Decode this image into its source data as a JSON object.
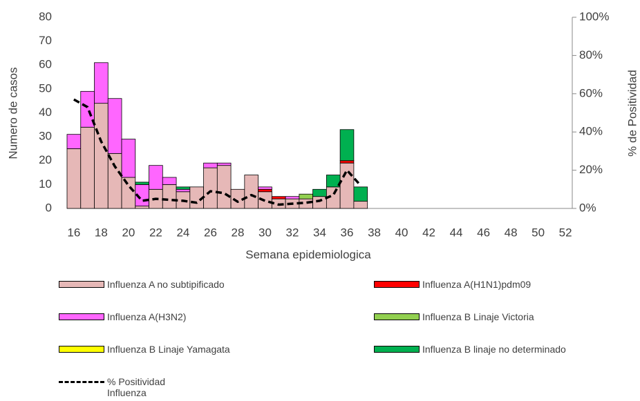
{
  "chart_data": {
    "type": "bar",
    "stacked": true,
    "x_label": "Semana epidemiologica",
    "y_label": "Numero de casos",
    "y2_label": "% de Positividad",
    "categories": [
      16,
      null,
      18,
      null,
      20,
      null,
      22,
      null,
      24,
      null,
      26,
      null,
      28,
      null,
      30,
      null,
      32,
      null,
      34,
      null,
      36,
      null,
      38,
      null,
      40,
      null,
      42,
      null,
      44,
      null,
      46,
      null,
      48,
      null,
      50,
      null,
      52
    ],
    "ylim": [
      0,
      80
    ],
    "yticks": [
      0,
      10,
      20,
      30,
      40,
      50,
      60,
      70,
      80
    ],
    "y2lim": [
      0,
      100
    ],
    "y2ticks": [
      {
        "value": 0,
        "label": "0%"
      },
      {
        "value": 20,
        "label": "20%"
      },
      {
        "value": 40,
        "label": "40%"
      },
      {
        "value": 60,
        "label": "60%"
      },
      {
        "value": 80,
        "label": "80%"
      },
      {
        "value": 100,
        "label": "100%"
      }
    ],
    "series": [
      {
        "name": "Influenza A no subtipificado",
        "color": "#e6b8b7",
        "values": [
          25,
          34,
          44,
          23,
          13,
          1,
          8,
          10,
          7,
          9,
          17,
          18,
          8,
          14,
          7,
          4,
          4,
          4,
          5,
          9,
          19,
          3,
          null,
          null,
          null,
          null,
          null,
          null,
          null,
          null,
          null,
          null,
          null,
          null,
          null,
          null,
          null
        ]
      },
      {
        "name": "Influenza A(H1N1)pdm09",
        "color": "#ff0000",
        "values": [
          0,
          0,
          0,
          0,
          0,
          0,
          0,
          0,
          0,
          0,
          0,
          0,
          0,
          0,
          1,
          1,
          0,
          0,
          0,
          0,
          1,
          0,
          null,
          null,
          null,
          null,
          null,
          null,
          null,
          null,
          null,
          null,
          null,
          null,
          null,
          null,
          null
        ]
      },
      {
        "name": "Influenza A(H3N2)",
        "color": "#ff66ff",
        "values": [
          6,
          15,
          17,
          23,
          16,
          9,
          10,
          3,
          1,
          0,
          2,
          1,
          0,
          0,
          1,
          0,
          1,
          0,
          0,
          0,
          0,
          0,
          null,
          null,
          null,
          null,
          null,
          null,
          null,
          null,
          null,
          null,
          null,
          null,
          null,
          null,
          null
        ]
      },
      {
        "name": "Influenza B Linaje Victoria",
        "color": "#92d050",
        "values": [
          0,
          0,
          0,
          0,
          0,
          0,
          0,
          0,
          0,
          0,
          0,
          0,
          0,
          0,
          0,
          0,
          0,
          2,
          0,
          0,
          0,
          0,
          null,
          null,
          null,
          null,
          null,
          null,
          null,
          null,
          null,
          null,
          null,
          null,
          null,
          null,
          null
        ]
      },
      {
        "name": "Influenza B Linaje Yamagata",
        "color": "#ffff00",
        "values": [
          0,
          0,
          0,
          0,
          0,
          0,
          0,
          0,
          0,
          0,
          0,
          0,
          0,
          0,
          0,
          0,
          0,
          0,
          0,
          0,
          0,
          0,
          null,
          null,
          null,
          null,
          null,
          null,
          null,
          null,
          null,
          null,
          null,
          null,
          null,
          null,
          null
        ]
      },
      {
        "name": "Influenza B linaje no determinado",
        "color": "#00b050",
        "values": [
          0,
          0,
          0,
          0,
          0,
          1,
          0,
          0,
          1,
          0,
          0,
          0,
          0,
          0,
          0,
          0,
          0,
          0,
          3,
          5,
          13,
          6,
          null,
          null,
          null,
          null,
          null,
          null,
          null,
          null,
          null,
          null,
          null,
          null,
          null,
          null,
          null
        ]
      },
      {
        "name": "% Positividad Influenza",
        "color": "#000000",
        "type": "line",
        "axis": "y2",
        "dashed": true,
        "values": [
          57,
          53,
          35,
          22,
          12,
          4,
          5,
          4.5,
          4,
          3,
          9,
          8,
          3.5,
          7,
          4,
          2,
          2.5,
          3,
          4,
          7,
          20,
          12,
          null,
          null,
          null,
          null,
          null,
          null,
          null,
          null,
          null,
          null,
          null,
          null,
          null,
          null,
          null
        ]
      }
    ]
  }
}
